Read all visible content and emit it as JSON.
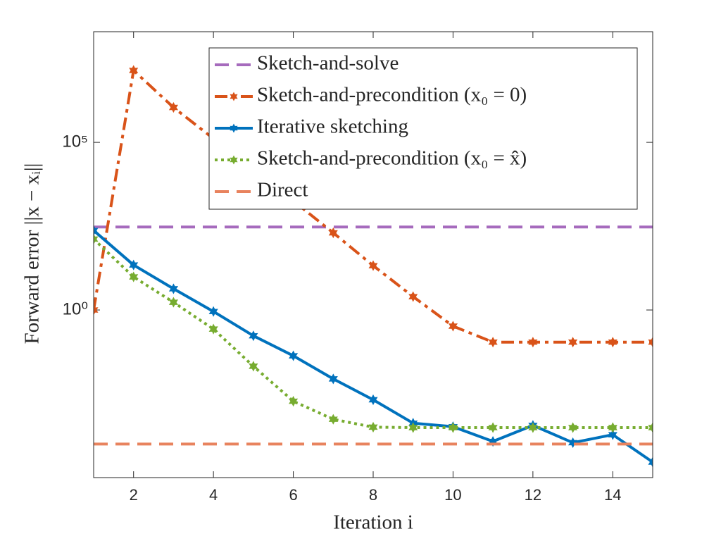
{
  "chart_data": {
    "type": "line",
    "xlabel": "Iteration i",
    "ylabel": "Forward error ||x − xᵢ||",
    "x": [
      1,
      2,
      3,
      4,
      5,
      6,
      7,
      8,
      9,
      10,
      11,
      12,
      13,
      14,
      15
    ],
    "xlim": [
      1,
      15
    ],
    "xticks": [
      2,
      4,
      6,
      8,
      10,
      12,
      14
    ],
    "ylim": [
      1e-05,
      200000000
    ],
    "yticks": [
      {
        "value": 1,
        "label": "10⁰"
      },
      {
        "value": 100000,
        "label": "10⁵"
      }
    ],
    "yscale": "log",
    "grid": false,
    "legend": "north east",
    "series": [
      {
        "name": "Sketch-and-solve",
        "color": "#a66bbd",
        "dash": "dashed",
        "marker": "none",
        "values": [
          300,
          300,
          300,
          300,
          300,
          300,
          300,
          300,
          300,
          300,
          300,
          300,
          300,
          300,
          300
        ]
      },
      {
        "name": "Sketch-and-precondition (x₀ = 0)",
        "color": "#d95319",
        "dash": "dashdot",
        "marker": "hexagram",
        "values": [
          1,
          14000000,
          1100000,
          130000,
          16000,
          1800,
          200,
          21,
          2.5,
          0.33,
          0.11,
          0.11,
          0.11,
          0.11,
          0.11
        ]
      },
      {
        "name": "Iterative sketching",
        "color": "#0072bd",
        "dash": "solid",
        "marker": "hexagram",
        "values": [
          235,
          22,
          4.3,
          0.9,
          0.17,
          0.043,
          0.0088,
          0.0021,
          0.00042,
          0.00033,
          0.00012,
          0.00036,
          0.00011,
          0.00019,
          2.9e-05
        ]
      },
      {
        "name": "Sketch-and-precondition (x₀ = x̂)",
        "color": "#77ac30",
        "dash": "dotted",
        "marker": "hexagram",
        "values": [
          130,
          9.7,
          1.7,
          0.27,
          0.021,
          0.0019,
          0.00055,
          0.00032,
          0.00031,
          0.00031,
          0.00031,
          0.00031,
          0.00031,
          0.00031,
          0.00031
        ]
      },
      {
        "name": "Direct",
        "color": "#e8835e",
        "dash": "dashed",
        "marker": "none",
        "values": [
          0.0001,
          0.0001,
          0.0001,
          0.0001,
          0.0001,
          0.0001,
          0.0001,
          0.0001,
          0.0001,
          0.0001,
          0.0001,
          0.0001,
          0.0001,
          0.0001,
          0.0001
        ]
      }
    ]
  }
}
